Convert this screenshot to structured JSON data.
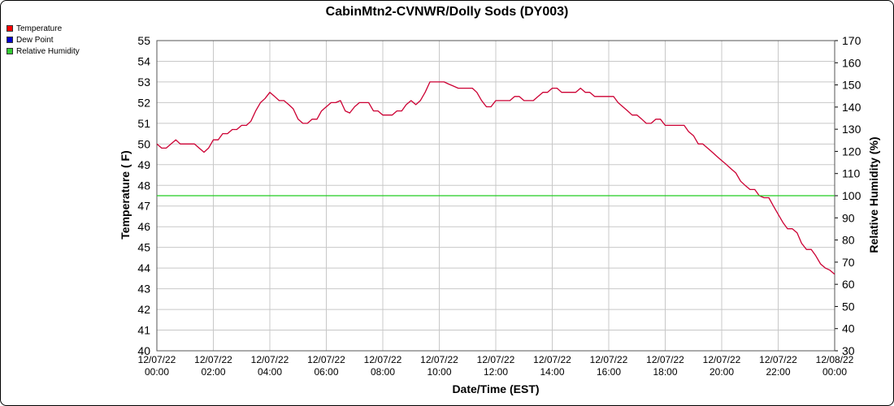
{
  "chart_data": {
    "type": "line",
    "title": "CabinMtn2-CVNWR/Dolly Sods (DY003)",
    "xlabel": "Date/Time (EST)",
    "ylabel": "Temperature ( F)",
    "y2label": "Relative Humidity (%)",
    "ylim": [
      40,
      55
    ],
    "y2lim": [
      30,
      170
    ],
    "yticks": [
      40,
      41,
      42,
      43,
      44,
      45,
      46,
      47,
      48,
      49,
      50,
      51,
      52,
      53,
      54,
      55
    ],
    "y2ticks": [
      30,
      40,
      50,
      60,
      70,
      80,
      90,
      100,
      110,
      120,
      130,
      140,
      150,
      160,
      170
    ],
    "xlim": [
      0,
      24
    ],
    "xticks": [
      {
        "date": "12/07/22",
        "time": "00:00"
      },
      {
        "date": "12/07/22",
        "time": "02:00"
      },
      {
        "date": "12/07/22",
        "time": "04:00"
      },
      {
        "date": "12/07/22",
        "time": "06:00"
      },
      {
        "date": "12/07/22",
        "time": "08:00"
      },
      {
        "date": "12/07/22",
        "time": "10:00"
      },
      {
        "date": "12/07/22",
        "time": "12:00"
      },
      {
        "date": "12/07/22",
        "time": "14:00"
      },
      {
        "date": "12/07/22",
        "time": "16:00"
      },
      {
        "date": "12/07/22",
        "time": "18:00"
      },
      {
        "date": "12/07/22",
        "time": "20:00"
      },
      {
        "date": "12/07/22",
        "time": "22:00"
      },
      {
        "date": "12/08/22",
        "time": "00:00"
      }
    ],
    "grid": true,
    "legend_position": "top-left",
    "series": [
      {
        "name": "Temperature",
        "axis": "left",
        "color": "#cc0033",
        "swatch": "#ff0000",
        "x": [
          0,
          0.17,
          0.33,
          0.5,
          0.67,
          0.83,
          1,
          1.17,
          1.33,
          1.5,
          1.67,
          1.83,
          2,
          2.17,
          2.33,
          2.5,
          2.67,
          2.83,
          3,
          3.17,
          3.33,
          3.5,
          3.67,
          3.83,
          4,
          4.17,
          4.33,
          4.5,
          4.67,
          4.83,
          5,
          5.17,
          5.33,
          5.5,
          5.67,
          5.83,
          6,
          6.17,
          6.33,
          6.5,
          6.67,
          6.83,
          7,
          7.17,
          7.33,
          7.5,
          7.67,
          7.83,
          8,
          8.17,
          8.33,
          8.5,
          8.67,
          8.83,
          9,
          9.17,
          9.33,
          9.5,
          9.67,
          9.83,
          10,
          10.17,
          10.33,
          10.5,
          10.67,
          10.83,
          11,
          11.17,
          11.33,
          11.5,
          11.67,
          11.83,
          12,
          12.17,
          12.33,
          12.5,
          12.67,
          12.83,
          13,
          13.17,
          13.33,
          13.5,
          13.67,
          13.83,
          14,
          14.17,
          14.33,
          14.5,
          14.67,
          14.83,
          15,
          15.17,
          15.33,
          15.5,
          15.67,
          15.83,
          16,
          16.17,
          16.33,
          16.5,
          16.67,
          16.83,
          17,
          17.17,
          17.33,
          17.5,
          17.67,
          17.83,
          18,
          18.17,
          18.33,
          18.5,
          18.67,
          18.83,
          19,
          19.17,
          19.33,
          19.5,
          19.67,
          19.83,
          20,
          20.17,
          20.33,
          20.5,
          20.67,
          20.83,
          21,
          21.17,
          21.33,
          21.5,
          21.67,
          21.83,
          22,
          22.17,
          22.33,
          22.5,
          22.67,
          22.83,
          23,
          23.17,
          23.33,
          23.5,
          23.67,
          23.83,
          24
        ],
        "values": [
          50.0,
          49.8,
          49.8,
          50.0,
          50.2,
          50.0,
          50.0,
          50.0,
          50.0,
          49.8,
          49.6,
          49.8,
          50.2,
          50.2,
          50.5,
          50.5,
          50.7,
          50.7,
          50.9,
          50.9,
          51.1,
          51.6,
          52.0,
          52.2,
          52.5,
          52.3,
          52.1,
          52.1,
          51.9,
          51.7,
          51.2,
          51.0,
          51.0,
          51.2,
          51.2,
          51.6,
          51.8,
          52.0,
          52.0,
          52.1,
          51.6,
          51.5,
          51.8,
          52.0,
          52.0,
          52.0,
          51.6,
          51.6,
          51.4,
          51.4,
          51.4,
          51.6,
          51.6,
          51.9,
          52.1,
          51.9,
          52.1,
          52.5,
          53.0,
          53.0,
          53.0,
          53.0,
          52.9,
          52.8,
          52.7,
          52.7,
          52.7,
          52.7,
          52.5,
          52.1,
          51.8,
          51.8,
          52.1,
          52.1,
          52.1,
          52.1,
          52.3,
          52.3,
          52.1,
          52.1,
          52.1,
          52.3,
          52.5,
          52.5,
          52.7,
          52.7,
          52.5,
          52.5,
          52.5,
          52.5,
          52.7,
          52.5,
          52.5,
          52.3,
          52.3,
          52.3,
          52.3,
          52.3,
          52.0,
          51.8,
          51.6,
          51.4,
          51.4,
          51.2,
          51.0,
          51.0,
          51.2,
          51.2,
          50.9,
          50.9,
          50.9,
          50.9,
          50.9,
          50.6,
          50.4,
          50.0,
          50.0,
          49.8,
          49.6,
          49.4,
          49.2,
          49.0,
          48.8,
          48.6,
          48.2,
          48.0,
          47.8,
          47.8,
          47.5,
          47.4,
          47.4,
          47.0,
          46.6,
          46.2,
          45.9,
          45.9,
          45.7,
          45.2,
          44.9,
          44.9,
          44.6,
          44.2,
          44.0,
          43.9,
          43.7
        ]
      },
      {
        "name": "Dew Point",
        "axis": "left",
        "color": "#0000cc",
        "swatch": "#0000cc",
        "x": [],
        "values": []
      },
      {
        "name": "Relative Humidity",
        "axis": "right",
        "color": "#22cc22",
        "swatch": "#33cc33",
        "x": [
          0,
          24
        ],
        "values": [
          100,
          100
        ]
      }
    ]
  }
}
